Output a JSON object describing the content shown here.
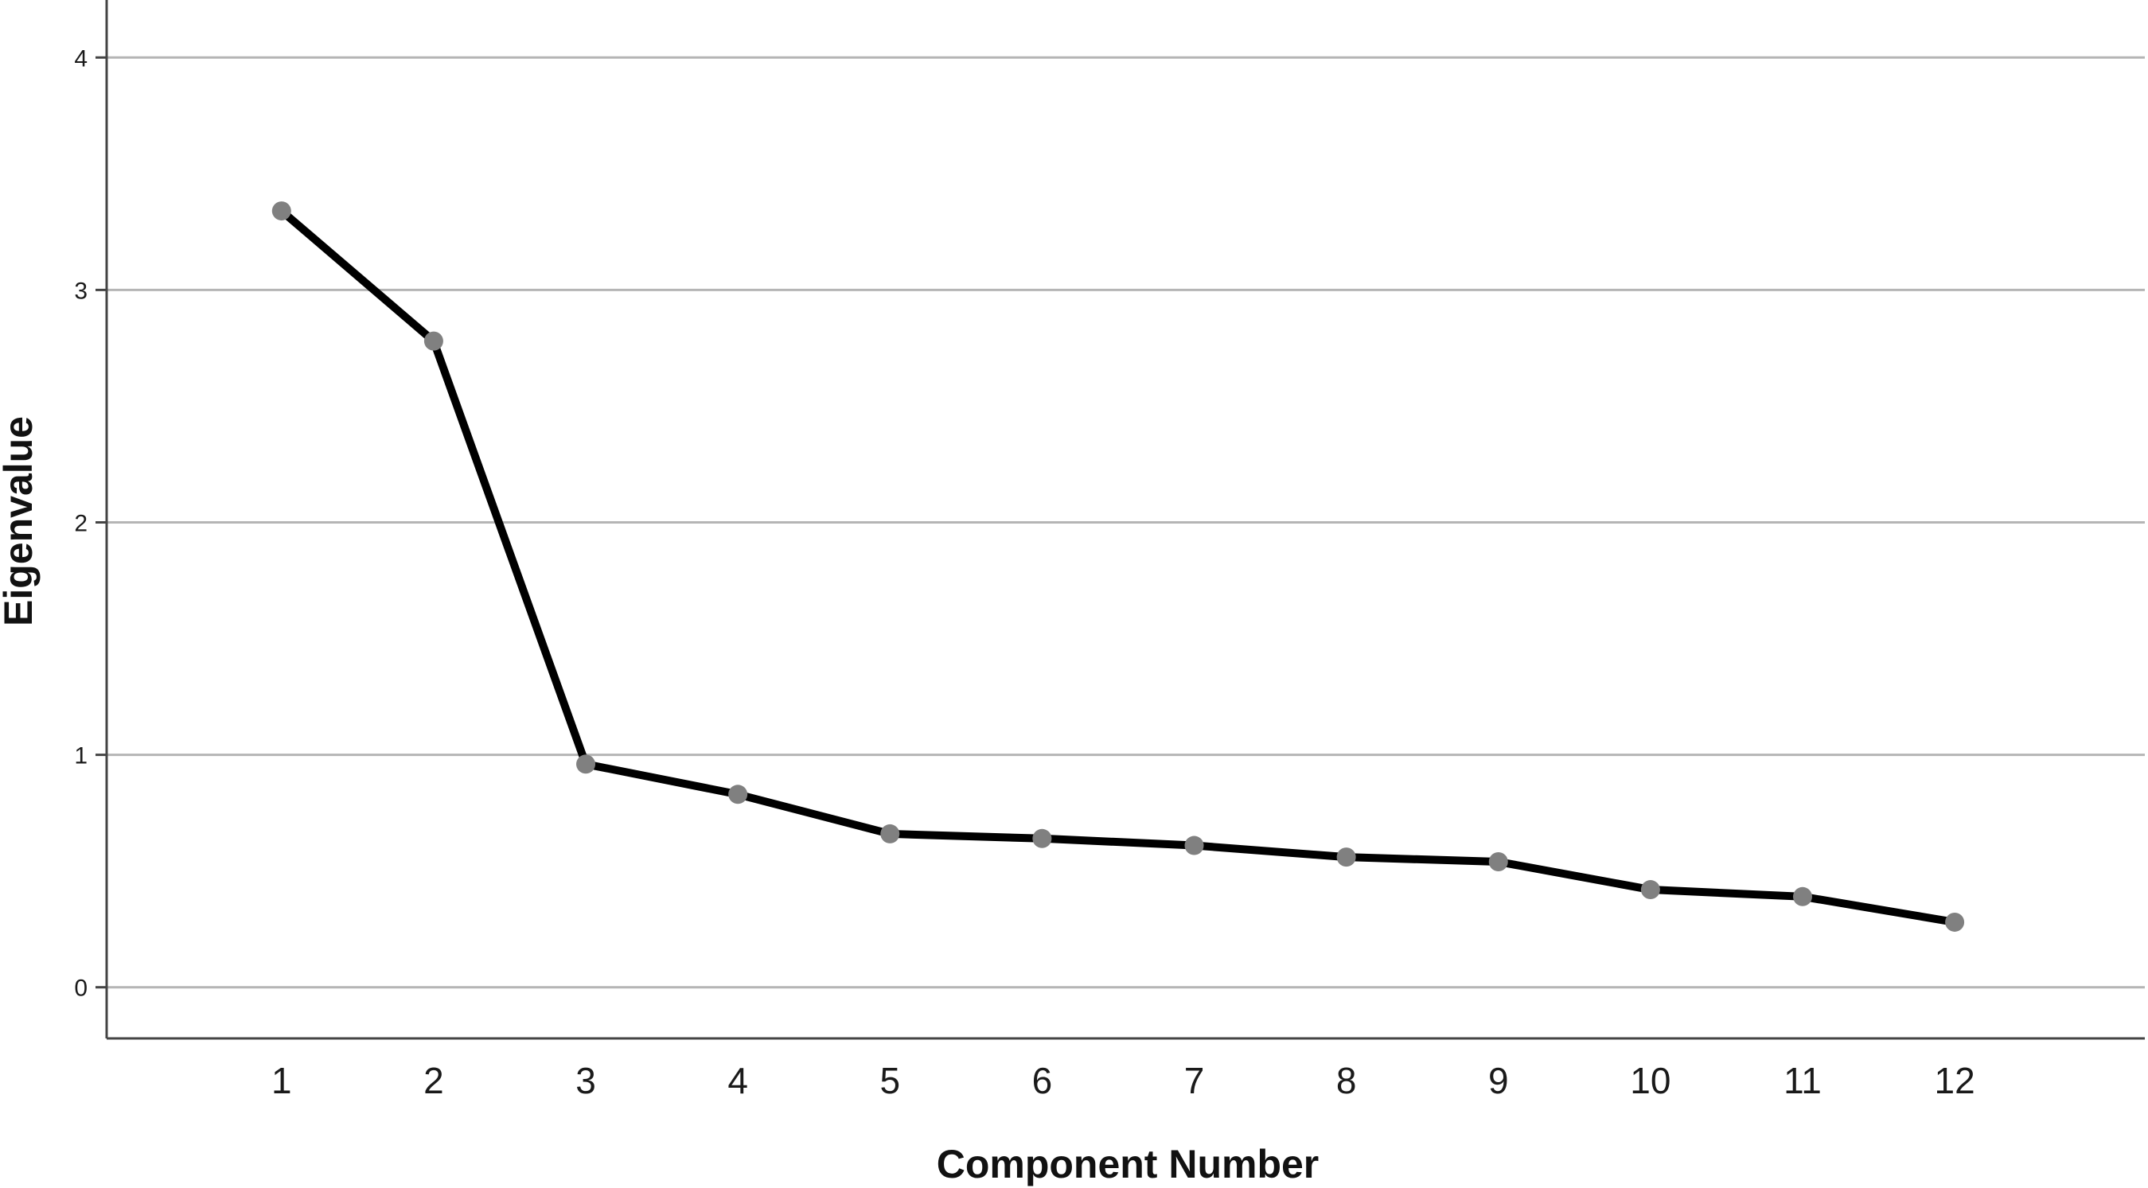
{
  "chart_data": {
    "type": "line",
    "title": "",
    "xlabel": "Component Number",
    "ylabel": "Eigenvalue",
    "x": [
      1,
      2,
      3,
      4,
      5,
      6,
      7,
      8,
      9,
      10,
      11,
      12
    ],
    "x_tick_labels": [
      "1",
      "2",
      "3",
      "4",
      "5",
      "6",
      "7",
      "8",
      "9",
      "10",
      "11",
      "12"
    ],
    "y_ticks": [
      0,
      1,
      2,
      3,
      4
    ],
    "y_tick_labels": [
      "0",
      "1",
      "2",
      "3",
      "4"
    ],
    "ylim": [
      -0.22,
      4.22
    ],
    "xlim": [
      -0.15,
      13.25
    ],
    "grid": true,
    "legend": "none",
    "series": [
      {
        "values": [
          3.34,
          2.78,
          0.96,
          0.83,
          0.66,
          0.64,
          0.61,
          0.56,
          0.54,
          0.42,
          0.39,
          0.28
        ],
        "line_color": "#000000",
        "marker_color": "#808080"
      }
    ]
  }
}
